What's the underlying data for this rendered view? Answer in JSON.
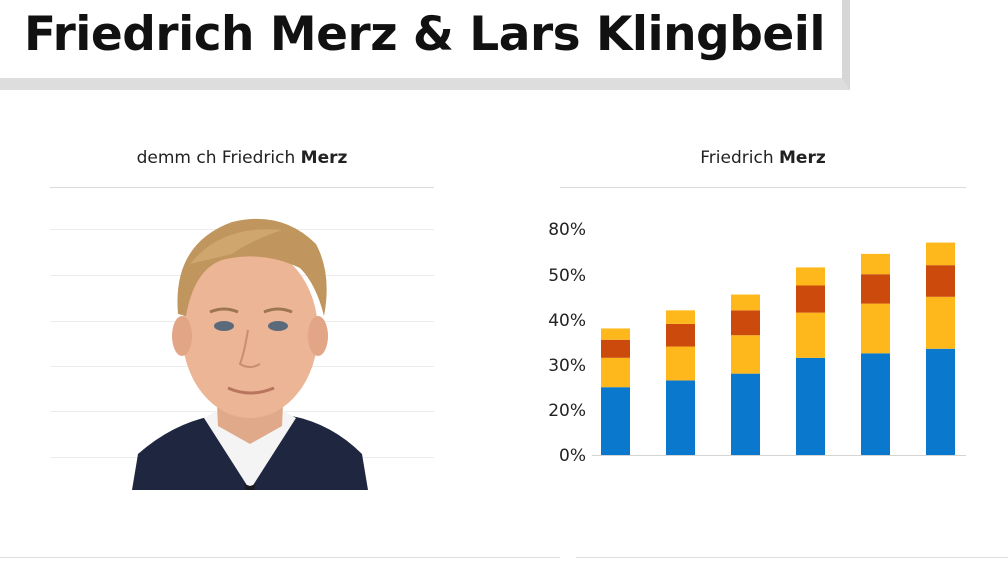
{
  "title": "Friedrich Merz & Lars Klingbeil",
  "left_panel": {
    "heading_light": "demm ch Friedrich ",
    "heading_bold": "Merz"
  },
  "right_panel": {
    "heading_light": "Friedrich ",
    "heading_bold": "Merz"
  },
  "colors": {
    "blue": "#0a78cc",
    "yellow": "#ffb81c",
    "orange": "#cc4a0c"
  },
  "chart_data": {
    "type": "bar",
    "stacked": true,
    "y_tick_labels": [
      "0%",
      "20%",
      "30%",
      "40%",
      "50%",
      "80%"
    ],
    "categories": [
      "",
      "",
      "",
      "",
      "",
      ""
    ],
    "series": [
      {
        "values": [
          15,
          16.5,
          18,
          21.5,
          22.5,
          23.5
        ],
        "color": "#0a78cc"
      },
      {
        "values": [
          6.5,
          7.5,
          8.5,
          10,
          11,
          11.5
        ],
        "color": "#ffb81c"
      },
      {
        "values": [
          4,
          5,
          5.5,
          6,
          6.5,
          7
        ],
        "color": "#cc4a0c"
      },
      {
        "values": [
          2.5,
          3,
          3.5,
          4,
          4.5,
          5
        ],
        "color": "#ffb81c"
      }
    ],
    "ylim": [
      0,
      50
    ],
    "grid": false,
    "legend": "none"
  }
}
